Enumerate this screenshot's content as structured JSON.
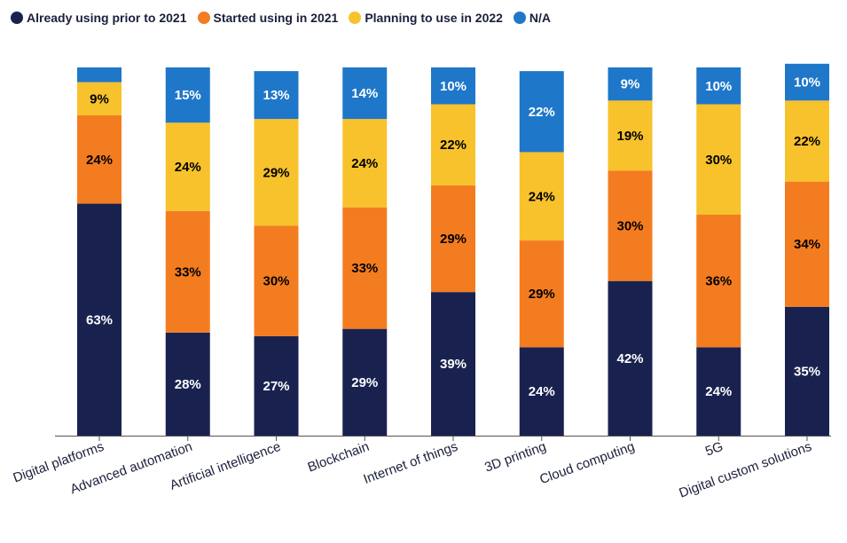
{
  "chart_data": {
    "type": "bar",
    "stacked": true,
    "categories": [
      "Digital platforms",
      "Advanced automation",
      "Artificial intelligence",
      "Blockchain",
      "Internet of things",
      "3D printing",
      "Cloud computing",
      "5G",
      "Digital custom solutions"
    ],
    "series": [
      {
        "name": "Already using prior to 2021",
        "color": "#19224f",
        "values": [
          63,
          28,
          27,
          29,
          39,
          24,
          42,
          24,
          35
        ]
      },
      {
        "name": "Started using in 2021",
        "color": "#f47c20",
        "values": [
          24,
          33,
          30,
          33,
          29,
          29,
          30,
          36,
          34
        ]
      },
      {
        "name": "Planning to use in 2022",
        "color": "#f7c22b",
        "values": [
          9,
          24,
          29,
          24,
          22,
          24,
          19,
          30,
          22
        ]
      },
      {
        "name": "N/A",
        "color": "#1f77c9",
        "values": [
          4,
          15,
          13,
          14,
          10,
          22,
          9,
          10,
          10
        ]
      }
    ],
    "data_labels": [
      [
        "63%",
        "28%",
        "27%",
        "29%",
        "39%",
        "24%",
        "42%",
        "24%",
        "35%"
      ],
      [
        "24%",
        "33%",
        "30%",
        "33%",
        "29%",
        "29%",
        "30%",
        "36%",
        "34%"
      ],
      [
        "9%",
        "24%",
        "29%",
        "24%",
        "22%",
        "24%",
        "19%",
        "30%",
        "22%"
      ],
      [
        "",
        "15%",
        "13%",
        "14%",
        "10%",
        "22%",
        "9%",
        "10%",
        "10%"
      ]
    ],
    "label_colors": [
      "#ffffff",
      "#000000",
      "#000000",
      "#ffffff"
    ],
    "ylim": [
      0,
      100
    ],
    "grid": false,
    "legend_position": "top-left"
  }
}
